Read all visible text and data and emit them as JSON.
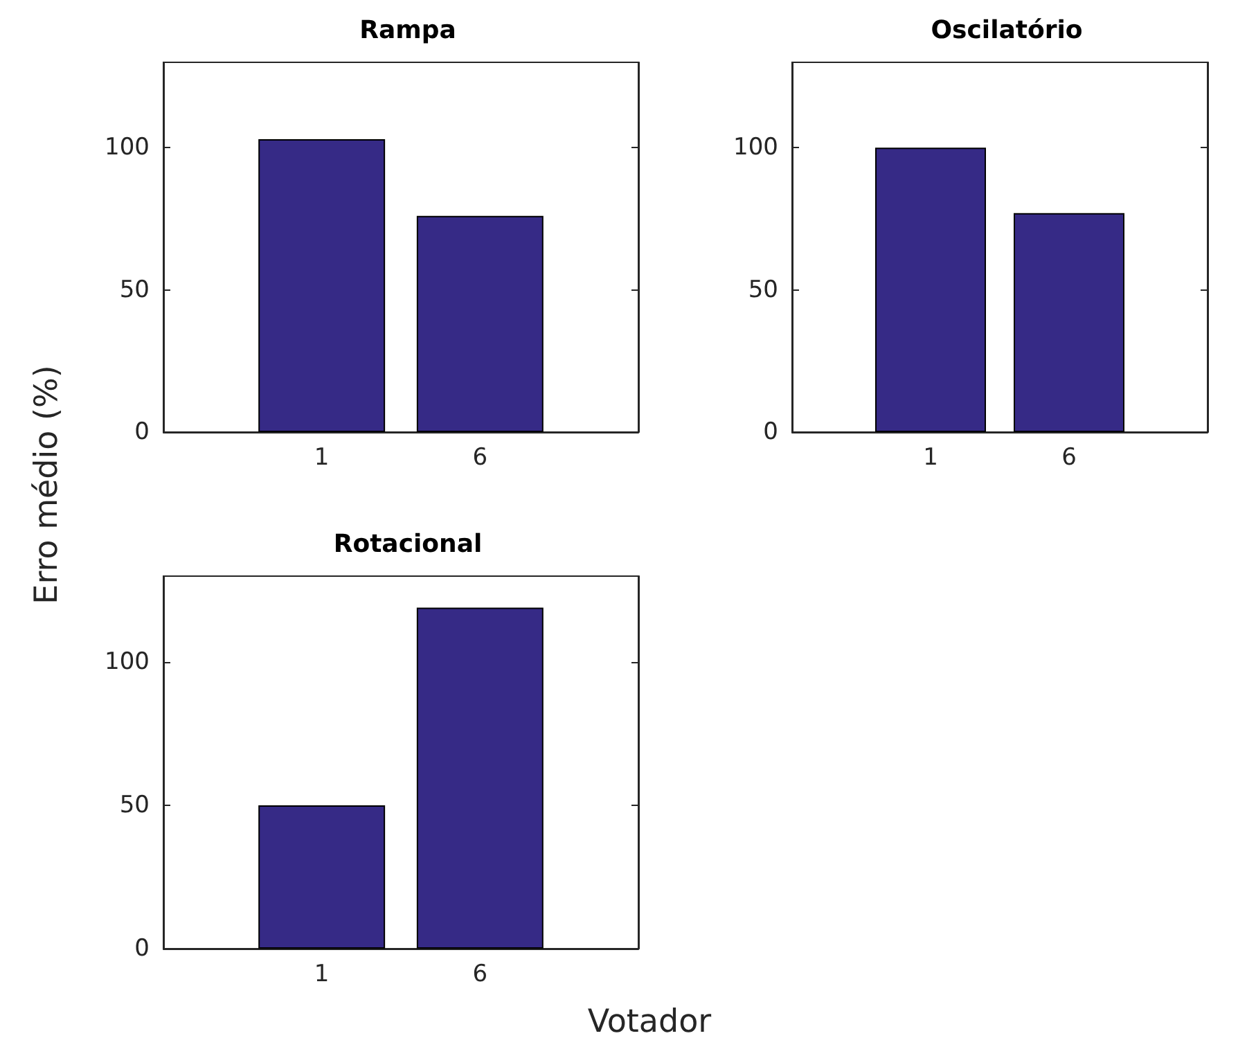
{
  "chart_data": [
    {
      "type": "bar",
      "title": "Rampa",
      "ylabel": "Erro médio (%)",
      "categories": [
        "1",
        "6"
      ],
      "values": [
        103,
        76
      ],
      "color": "#362a86",
      "ylim": [
        0,
        130
      ],
      "yticks": [
        0,
        50,
        100
      ],
      "grid": false
    },
    {
      "type": "bar",
      "title": "Oscilatório",
      "categories": [
        "1",
        "6"
      ],
      "values": [
        100,
        77
      ],
      "color": "#362a86",
      "ylim": [
        0,
        130
      ],
      "yticks": [
        0,
        50,
        100
      ],
      "grid": false
    },
    {
      "type": "bar",
      "title": "Rotacional",
      "xlabel": "Votador",
      "categories": [
        "1",
        "6"
      ],
      "values": [
        50,
        119
      ],
      "color": "#362a86",
      "ylim": [
        0,
        130
      ],
      "yticks": [
        0,
        50,
        100
      ],
      "grid": false
    }
  ]
}
